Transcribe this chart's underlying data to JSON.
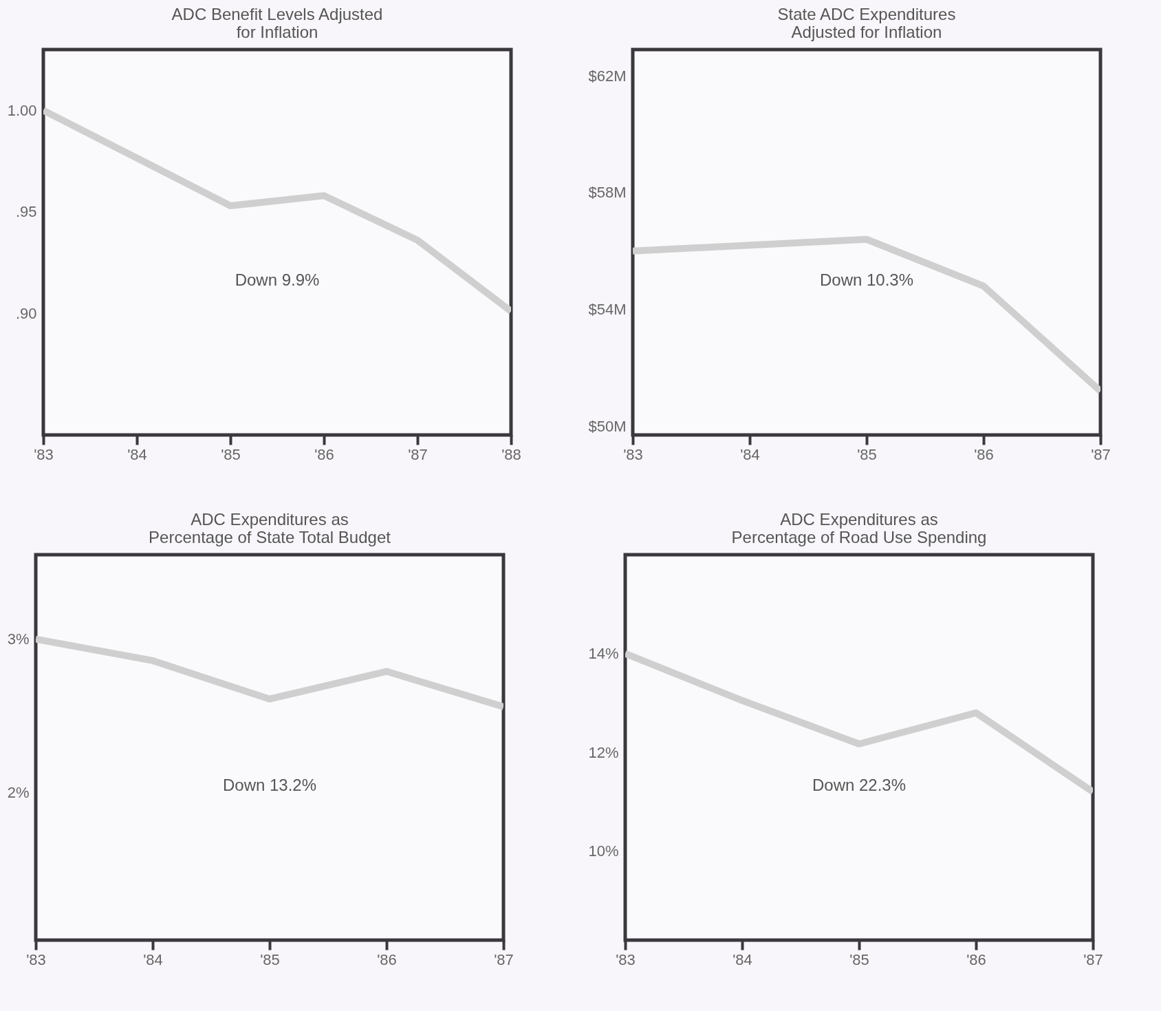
{
  "chart_data": [
    {
      "type": "line",
      "title": "ADC Benefit Levels Adjusted\nfor Inflation",
      "x": [
        1983,
        1985,
        1986,
        1987,
        1988
      ],
      "series": [
        {
          "color": "#cfcfcf",
          "values": [
            1.0,
            0.953,
            0.958,
            0.936,
            0.901
          ]
        }
      ],
      "xlim": [
        1983,
        1988
      ],
      "xticks": [
        {
          "value": 1983,
          "label": "'83"
        },
        {
          "value": 1984,
          "label": "'84"
        },
        {
          "value": 1985,
          "label": "'85"
        },
        {
          "value": 1986,
          "label": "'86"
        },
        {
          "value": 1987,
          "label": "'87"
        },
        {
          "value": 1988,
          "label": "'88"
        }
      ],
      "ylim": [
        0.84,
        1.03
      ],
      "yticks": [
        {
          "value": 0.9,
          "label": ".90"
        },
        {
          "value": 0.95,
          "label": ".95"
        },
        {
          "value": 1.0,
          "label": "1.00"
        }
      ],
      "annotations": [
        "Down 9.9%"
      ],
      "grid": false,
      "marker": "none",
      "line_style": "solid"
    },
    {
      "type": "line",
      "title": "State ADC Expenditures\nAdjusted for Inflation",
      "x": [
        1983,
        1985,
        1986,
        1987
      ],
      "series": [
        {
          "color": "#cfcfcf",
          "values": [
            56.0,
            56.4,
            54.8,
            51.2
          ]
        }
      ],
      "xlim": [
        1983,
        1987
      ],
      "xticks": [
        {
          "value": 1983,
          "label": "'83"
        },
        {
          "value": 1984,
          "label": "'84"
        },
        {
          "value": 1985,
          "label": "'85"
        },
        {
          "value": 1986,
          "label": "'86"
        },
        {
          "value": 1987,
          "label": "'87"
        }
      ],
      "ylim": [
        49.7,
        62.9
      ],
      "yticks": [
        {
          "value": 50,
          "label": "$50M"
        },
        {
          "value": 54,
          "label": "$54M"
        },
        {
          "value": 58,
          "label": "$58M"
        },
        {
          "value": 62,
          "label": "$62M"
        }
      ],
      "annotations": [
        "Down 10.3%"
      ],
      "grid": false,
      "marker": "none",
      "line_style": "solid"
    },
    {
      "type": "line",
      "title": "ADC Expenditures as\nPercentage of State Total Budget",
      "x": [
        1983,
        1984,
        1985,
        1986,
        1987
      ],
      "series": [
        {
          "color": "#cfcfcf",
          "values": [
            3.0,
            2.86,
            2.61,
            2.79,
            2.56
          ]
        }
      ],
      "xlim": [
        1983,
        1987
      ],
      "xticks": [
        {
          "value": 1983,
          "label": "'83"
        },
        {
          "value": 1984,
          "label": "'84"
        },
        {
          "value": 1985,
          "label": "'85"
        },
        {
          "value": 1986,
          "label": "'86"
        },
        {
          "value": 1987,
          "label": "'87"
        }
      ],
      "ylim": [
        1.04,
        3.55
      ],
      "yticks": [
        {
          "value": 2,
          "label": "2%"
        },
        {
          "value": 3,
          "label": "3%"
        }
      ],
      "annotations": [
        "Down 13.2%"
      ],
      "grid": false,
      "marker": "none",
      "line_style": "solid"
    },
    {
      "type": "line",
      "title": "ADC Expenditures as\nPercentage of Road Use Spending",
      "x": [
        1983,
        1984,
        1985,
        1986,
        1987
      ],
      "series": [
        {
          "color": "#cfcfcf",
          "values": [
            14.0,
            13.05,
            12.17,
            12.8,
            11.2
          ]
        }
      ],
      "xlim": [
        1983,
        1987
      ],
      "xticks": [
        {
          "value": 1983,
          "label": "'83"
        },
        {
          "value": 1984,
          "label": "'84"
        },
        {
          "value": 1985,
          "label": "'85"
        },
        {
          "value": 1986,
          "label": "'86"
        },
        {
          "value": 1987,
          "label": "'87"
        }
      ],
      "ylim": [
        8.2,
        16.0
      ],
      "yticks": [
        {
          "value": 10,
          "label": "10%"
        },
        {
          "value": 12,
          "label": "12%"
        },
        {
          "value": 14,
          "label": "14%"
        }
      ],
      "annotations": [
        "Down 22.3%"
      ],
      "grid": false,
      "marker": "none",
      "line_style": "solid"
    }
  ]
}
